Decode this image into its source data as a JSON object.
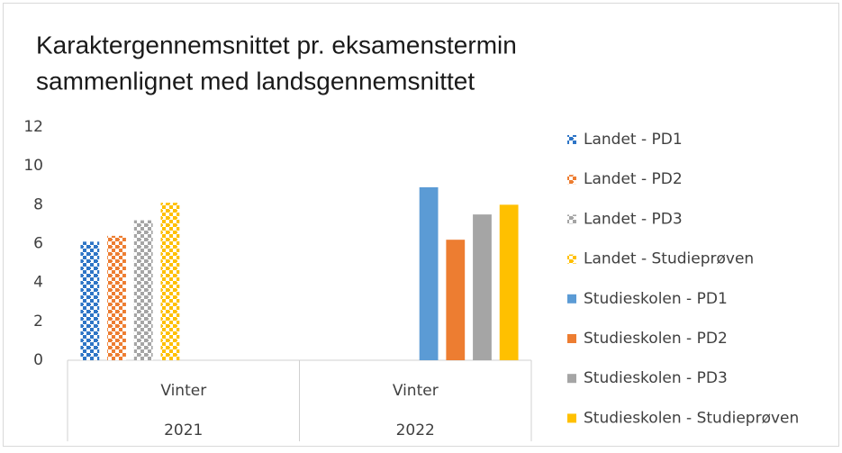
{
  "chart_data": {
    "type": "bar",
    "title_lines": [
      "Karaktergennemsnittet pr. eksamenstermin",
      "sammenlignet med landsgennemsnittet"
    ],
    "categories": [
      "Vinter",
      "Vinter"
    ],
    "category_groups": [
      "2021",
      "2022"
    ],
    "ylim": [
      0,
      12
    ],
    "yticks": [
      0,
      2,
      4,
      6,
      8,
      10,
      12
    ],
    "grid": false,
    "legend": "right",
    "series": [
      {
        "name": "Landet - PD1",
        "color": "#2e75c6",
        "pattern": "checker",
        "values": [
          6.1,
          null
        ]
      },
      {
        "name": "Landet - PD2",
        "color": "#ed7d31",
        "pattern": "checker",
        "values": [
          6.4,
          null
        ]
      },
      {
        "name": "Landet - PD3",
        "color": "#a5a5a5",
        "pattern": "checker",
        "values": [
          7.2,
          null
        ]
      },
      {
        "name": "Landet - Studieprøven",
        "color": "#ffc000",
        "pattern": "checker",
        "values": [
          8.1,
          null
        ]
      },
      {
        "name": "Studieskolen - PD1",
        "color": "#5b9bd5",
        "pattern": "solid",
        "values": [
          null,
          8.9
        ]
      },
      {
        "name": "Studieskolen - PD2",
        "color": "#ed7d31",
        "pattern": "solid",
        "values": [
          null,
          6.2
        ]
      },
      {
        "name": "Studieskolen - PD3",
        "color": "#a5a5a5",
        "pattern": "solid",
        "values": [
          null,
          7.5
        ]
      },
      {
        "name": "Studieskolen - Studieprøven",
        "color": "#ffc000",
        "pattern": "solid",
        "values": [
          null,
          8.0
        ]
      }
    ]
  }
}
